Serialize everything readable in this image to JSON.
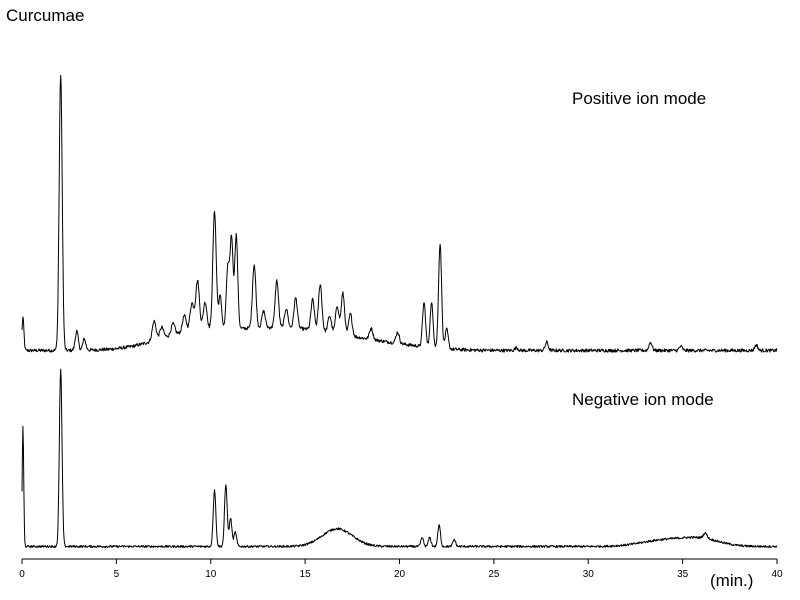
{
  "chart_data": {
    "type": "line",
    "title": "Curcumae",
    "xlabel": "(min.)",
    "xlim": [
      0,
      40
    ],
    "x_ticks": [
      "0",
      "5",
      "10",
      "15",
      "20",
      "25",
      "30",
      "35",
      "40"
    ],
    "grid": false,
    "panels": [
      {
        "label": "Positive ion mode",
        "baseline": 0.02,
        "noise": 0.006,
        "humps": [
          {
            "rt": 8.5,
            "height": 0.03,
            "width": 1.6
          },
          {
            "rt": 11.5,
            "height": 0.06,
            "width": 2.8
          },
          {
            "rt": 15.5,
            "height": 0.05,
            "width": 2.5
          },
          {
            "rt": 19.5,
            "height": 0.015,
            "width": 2.0
          }
        ],
        "peaks": [
          {
            "rt": 0.05,
            "height": 0.12,
            "width": 0.05
          },
          {
            "rt": 2.05,
            "height": 1.0,
            "width": 0.08
          },
          {
            "rt": 2.9,
            "height": 0.07,
            "width": 0.08
          },
          {
            "rt": 3.3,
            "height": 0.04,
            "width": 0.08
          },
          {
            "rt": 7.0,
            "height": 0.07,
            "width": 0.1
          },
          {
            "rt": 7.4,
            "height": 0.04,
            "width": 0.1
          },
          {
            "rt": 8.0,
            "height": 0.04,
            "width": 0.1
          },
          {
            "rt": 8.6,
            "height": 0.06,
            "width": 0.1
          },
          {
            "rt": 9.0,
            "height": 0.1,
            "width": 0.1
          },
          {
            "rt": 9.3,
            "height": 0.18,
            "width": 0.1
          },
          {
            "rt": 9.7,
            "height": 0.1,
            "width": 0.1
          },
          {
            "rt": 10.2,
            "height": 0.43,
            "width": 0.09
          },
          {
            "rt": 10.5,
            "height": 0.12,
            "width": 0.08
          },
          {
            "rt": 10.9,
            "height": 0.22,
            "width": 0.08
          },
          {
            "rt": 11.1,
            "height": 0.33,
            "width": 0.08
          },
          {
            "rt": 11.35,
            "height": 0.34,
            "width": 0.08
          },
          {
            "rt": 12.3,
            "height": 0.23,
            "width": 0.09
          },
          {
            "rt": 12.8,
            "height": 0.06,
            "width": 0.09
          },
          {
            "rt": 13.5,
            "height": 0.17,
            "width": 0.09
          },
          {
            "rt": 14.0,
            "height": 0.07,
            "width": 0.09
          },
          {
            "rt": 14.5,
            "height": 0.11,
            "width": 0.09
          },
          {
            "rt": 15.4,
            "height": 0.11,
            "width": 0.09
          },
          {
            "rt": 15.8,
            "height": 0.17,
            "width": 0.09
          },
          {
            "rt": 16.3,
            "height": 0.06,
            "width": 0.09
          },
          {
            "rt": 16.7,
            "height": 0.1,
            "width": 0.09
          },
          {
            "rt": 17.0,
            "height": 0.15,
            "width": 0.09
          },
          {
            "rt": 17.4,
            "height": 0.08,
            "width": 0.09
          },
          {
            "rt": 18.5,
            "height": 0.04,
            "width": 0.09
          },
          {
            "rt": 19.9,
            "height": 0.04,
            "width": 0.09
          },
          {
            "rt": 21.3,
            "height": 0.16,
            "width": 0.08
          },
          {
            "rt": 21.7,
            "height": 0.16,
            "width": 0.08
          },
          {
            "rt": 22.15,
            "height": 0.38,
            "width": 0.08
          },
          {
            "rt": 22.5,
            "height": 0.07,
            "width": 0.08
          },
          {
            "rt": 26.2,
            "height": 0.01,
            "width": 0.08
          },
          {
            "rt": 27.8,
            "height": 0.03,
            "width": 0.08
          },
          {
            "rt": 33.3,
            "height": 0.03,
            "width": 0.08
          },
          {
            "rt": 34.9,
            "height": 0.015,
            "width": 0.08
          },
          {
            "rt": 38.9,
            "height": 0.02,
            "width": 0.08
          }
        ]
      },
      {
        "label": "Negative ion mode",
        "baseline": 0.02,
        "noise": 0.006,
        "humps": [
          {
            "rt": 16.7,
            "height": 0.1,
            "width": 0.8
          },
          {
            "rt": 34.0,
            "height": 0.035,
            "width": 1.2
          },
          {
            "rt": 36.0,
            "height": 0.04,
            "width": 1.0
          }
        ],
        "peaks": [
          {
            "rt": 0.05,
            "height": 0.68,
            "width": 0.04
          },
          {
            "rt": 2.05,
            "height": 1.0,
            "width": 0.07
          },
          {
            "rt": 10.2,
            "height": 0.32,
            "width": 0.07
          },
          {
            "rt": 10.8,
            "height": 0.35,
            "width": 0.07
          },
          {
            "rt": 11.05,
            "height": 0.16,
            "width": 0.07
          },
          {
            "rt": 11.3,
            "height": 0.08,
            "width": 0.07
          },
          {
            "rt": 21.2,
            "height": 0.05,
            "width": 0.07
          },
          {
            "rt": 21.6,
            "height": 0.05,
            "width": 0.07
          },
          {
            "rt": 22.1,
            "height": 0.12,
            "width": 0.07
          },
          {
            "rt": 22.9,
            "height": 0.04,
            "width": 0.07
          },
          {
            "rt": 36.2,
            "height": 0.03,
            "width": 0.1
          }
        ]
      }
    ]
  }
}
